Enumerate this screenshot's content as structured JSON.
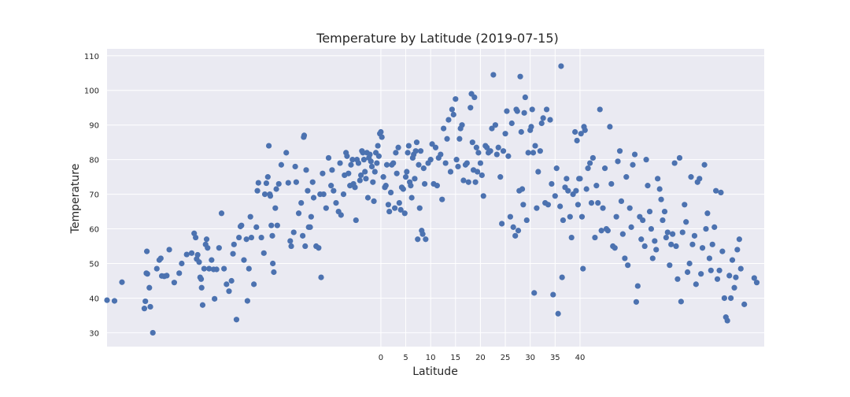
{
  "chart_data": {
    "type": "scatter",
    "title": "Temperature by Latitude (2019-07-15)",
    "xlabel": "Latitude",
    "ylabel": "Temperature",
    "xlim": [
      -55,
      77
    ],
    "ylim": [
      26,
      112
    ],
    "x_ticks": [
      0,
      5,
      10,
      15,
      20,
      25,
      30,
      35,
      40
    ],
    "y_ticks": [
      30,
      40,
      50,
      60,
      70,
      80,
      90,
      100,
      110
    ],
    "grid": true,
    "background": "#eaeaf2",
    "point_color": "#4c72b0",
    "points": [
      [
        -55,
        39.4
      ],
      [
        -53.5,
        39.2
      ],
      [
        -52,
        44.6
      ],
      [
        -47.5,
        37.0
      ],
      [
        -47.3,
        39.1
      ],
      [
        -47.1,
        47.2
      ],
      [
        -47.0,
        53.5
      ],
      [
        -46.9,
        47.0
      ],
      [
        -46.5,
        43.0
      ],
      [
        -46.3,
        37.5
      ],
      [
        -45.8,
        30.0
      ],
      [
        -45,
        48.5
      ],
      [
        -44.5,
        51.0
      ],
      [
        -44.2,
        51.5
      ],
      [
        -44,
        46.4
      ],
      [
        -43.5,
        46.3
      ],
      [
        -43,
        46.5
      ],
      [
        -42.5,
        54.0
      ],
      [
        -41.5,
        44.5
      ],
      [
        -40.5,
        47.2
      ],
      [
        -40,
        50.0
      ],
      [
        -39,
        52.6
      ],
      [
        -38,
        53.0
      ],
      [
        -37.5,
        58.7
      ],
      [
        -37.2,
        57.5
      ],
      [
        -37,
        51.3
      ],
      [
        -36.8,
        52.5
      ],
      [
        -36.5,
        50.4
      ],
      [
        -36.3,
        46.0
      ],
      [
        -36.1,
        45.5
      ],
      [
        -36,
        43.0
      ],
      [
        -35.8,
        38.0
      ],
      [
        -35.5,
        48.5
      ],
      [
        -35.2,
        55.5
      ],
      [
        -35,
        57.0
      ],
      [
        -34.8,
        54.5
      ],
      [
        -34.5,
        48.5
      ],
      [
        -34,
        51.0
      ],
      [
        -33.6,
        48.3
      ],
      [
        -33.4,
        39.8
      ],
      [
        -33,
        48.3
      ],
      [
        -32.5,
        54.5
      ],
      [
        -32,
        64.5
      ],
      [
        -31.5,
        48.5
      ],
      [
        -31,
        44.0
      ],
      [
        -30.5,
        42.0
      ],
      [
        -30,
        45.0
      ],
      [
        -29.7,
        52.8
      ],
      [
        -29.5,
        55.5
      ],
      [
        -29,
        33.8
      ],
      [
        -28.5,
        57.5
      ],
      [
        -28.2,
        60.7
      ],
      [
        -28,
        61.0
      ],
      [
        -27.5,
        51.0
      ],
      [
        -27,
        57.0
      ],
      [
        -26.8,
        39.2
      ],
      [
        -26.5,
        48.5
      ],
      [
        -26.2,
        63.5
      ],
      [
        -26,
        57.5
      ],
      [
        -25.5,
        44.0
      ],
      [
        -25,
        60.5
      ],
      [
        -24.8,
        71.0
      ],
      [
        -24.6,
        73.3
      ],
      [
        -24,
        57.5
      ],
      [
        -23.5,
        53.0
      ],
      [
        -23.3,
        70.0
      ],
      [
        -23,
        73.2
      ],
      [
        -22.7,
        75.0
      ],
      [
        -22.5,
        84.0
      ],
      [
        -22.3,
        70.0
      ],
      [
        -22.2,
        69.5
      ],
      [
        -22,
        61.0
      ],
      [
        -21.8,
        58.0
      ],
      [
        -21.7,
        50.0
      ],
      [
        -21.5,
        47.5
      ],
      [
        -21.2,
        66.0
      ],
      [
        -21,
        71.5
      ],
      [
        -20.8,
        61.0
      ],
      [
        -20.5,
        73.0
      ],
      [
        -20,
        78.5
      ],
      [
        -19,
        82.0
      ],
      [
        -18.6,
        73.3
      ],
      [
        -18.2,
        56.5
      ],
      [
        -18,
        55.0
      ],
      [
        -17.5,
        59.0
      ],
      [
        -17.2,
        78.0
      ],
      [
        -17,
        73.5
      ],
      [
        -16.5,
        64.5
      ],
      [
        -16,
        67.5
      ],
      [
        -15.7,
        58.0
      ],
      [
        -15.5,
        86.5
      ],
      [
        -15.4,
        87.0
      ],
      [
        -15.2,
        55.0
      ],
      [
        -15,
        77.0
      ],
      [
        -14.7,
        71.0
      ],
      [
        -14.5,
        60.5
      ],
      [
        -14.2,
        60.5
      ],
      [
        -14,
        63.5
      ],
      [
        -13.7,
        73.5
      ],
      [
        -13.5,
        69.0
      ],
      [
        -13,
        55.0
      ],
      [
        -12.5,
        54.5
      ],
      [
        -12.2,
        70.0
      ],
      [
        -12,
        46.0
      ],
      [
        -11.7,
        76.0
      ],
      [
        -11.5,
        70.0
      ],
      [
        -11,
        66.0
      ],
      [
        -10.5,
        80.5
      ],
      [
        -10,
        72.5
      ],
      [
        -9.8,
        77.0
      ],
      [
        -9.5,
        71.0
      ],
      [
        -9,
        67.5
      ],
      [
        -8.5,
        65.0
      ],
      [
        -8.2,
        79.0
      ],
      [
        -8,
        64.0
      ],
      [
        -7.5,
        70.0
      ],
      [
        -7.3,
        75.5
      ],
      [
        -7,
        82.0
      ],
      [
        -6.8,
        81.0
      ],
      [
        -6.5,
        76.0
      ],
      [
        -6.2,
        72.5
      ],
      [
        -6,
        78.5
      ],
      [
        -5.7,
        80.0
      ],
      [
        -5.5,
        73.0
      ],
      [
        -5.2,
        72.0
      ],
      [
        -5,
        62.5
      ],
      [
        -4.8,
        80.0
      ],
      [
        -4.5,
        79.0
      ],
      [
        -4.2,
        74.0
      ],
      [
        -4,
        75.5
      ],
      [
        -3.8,
        82.5
      ],
      [
        -3.6,
        82.0
      ],
      [
        -3.4,
        80.0
      ],
      [
        -3.2,
        76.5
      ],
      [
        -3,
        74.5
      ],
      [
        -2.8,
        82.0
      ],
      [
        -2.6,
        69.0
      ],
      [
        -2.4,
        80.5
      ],
      [
        -2.2,
        81.5
      ],
      [
        -2,
        79.5
      ],
      [
        -1.8,
        78.0
      ],
      [
        -1.6,
        73.5
      ],
      [
        -1.4,
        68.0
      ],
      [
        -1.2,
        76.5
      ],
      [
        -1,
        82.0
      ],
      [
        -0.8,
        79.0
      ],
      [
        -0.6,
        84.0
      ],
      [
        -0.4,
        81.0
      ],
      [
        -0.2,
        87.5
      ],
      [
        0,
        88.0
      ],
      [
        0.2,
        86.5
      ],
      [
        0.5,
        75.0
      ],
      [
        0.8,
        72.0
      ],
      [
        1,
        72.5
      ],
      [
        1.2,
        78.5
      ],
      [
        1.5,
        67.0
      ],
      [
        1.7,
        65.0
      ],
      [
        2,
        70.5
      ],
      [
        2.2,
        78.5
      ],
      [
        2.5,
        79.0
      ],
      [
        2.8,
        66.0
      ],
      [
        3,
        82.0
      ],
      [
        3.2,
        76.0
      ],
      [
        3.5,
        83.5
      ],
      [
        3.7,
        67.5
      ],
      [
        4,
        65.5
      ],
      [
        4.2,
        72.0
      ],
      [
        4.5,
        71.5
      ],
      [
        4.8,
        64.5
      ],
      [
        5,
        75.0
      ],
      [
        5.2,
        76.5
      ],
      [
        5.4,
        82.0
      ],
      [
        5.6,
        84.0
      ],
      [
        5.8,
        73.5
      ],
      [
        6,
        72.5
      ],
      [
        6.2,
        69.0
      ],
      [
        6.4,
        80.5
      ],
      [
        6.6,
        81.5
      ],
      [
        6.8,
        74.5
      ],
      [
        7,
        82.5
      ],
      [
        7.2,
        85.0
      ],
      [
        7.4,
        57.0
      ],
      [
        7.6,
        78.5
      ],
      [
        7.8,
        66.0
      ],
      [
        8,
        82.5
      ],
      [
        8.2,
        59.5
      ],
      [
        8.4,
        58.5
      ],
      [
        8.6,
        77.5
      ],
      [
        8.8,
        73.0
      ],
      [
        9,
        57.0
      ],
      [
        9.5,
        79.0
      ],
      [
        10,
        80.0
      ],
      [
        10.3,
        84.5
      ],
      [
        10.6,
        73.0
      ],
      [
        11,
        83.5
      ],
      [
        11.3,
        72.5
      ],
      [
        11.6,
        80.5
      ],
      [
        12,
        81.5
      ],
      [
        12.3,
        68.5
      ],
      [
        12.6,
        89.0
      ],
      [
        13,
        79.0
      ],
      [
        13.3,
        86.0
      ],
      [
        13.6,
        91.5
      ],
      [
        14,
        76.5
      ],
      [
        14.3,
        94.5
      ],
      [
        14.6,
        93.0
      ],
      [
        15,
        97.5
      ],
      [
        15.2,
        80.0
      ],
      [
        15.5,
        78.0
      ],
      [
        15.8,
        86.0
      ],
      [
        16,
        89.0
      ],
      [
        16.3,
        90.0
      ],
      [
        16.6,
        74.0
      ],
      [
        17,
        78.5
      ],
      [
        17.3,
        79.0
      ],
      [
        17.6,
        73.5
      ],
      [
        18,
        95.0
      ],
      [
        18.2,
        99.0
      ],
      [
        18.4,
        85.0
      ],
      [
        18.6,
        77.0
      ],
      [
        18.8,
        98.0
      ],
      [
        19,
        73.5
      ],
      [
        19.2,
        83.5
      ],
      [
        19.4,
        76.5
      ],
      [
        19.6,
        82.0
      ],
      [
        20,
        79.0
      ],
      [
        20.3,
        75.5
      ],
      [
        20.6,
        69.5
      ],
      [
        21,
        84.0
      ],
      [
        21.3,
        83.5
      ],
      [
        21.6,
        82.0
      ],
      [
        22,
        82.5
      ],
      [
        22.3,
        89.0
      ],
      [
        22.6,
        104.5
      ],
      [
        23,
        90.0
      ],
      [
        23.3,
        81.5
      ],
      [
        23.6,
        83.5
      ],
      [
        24,
        75.0
      ],
      [
        24.3,
        61.5
      ],
      [
        24.6,
        82.5
      ],
      [
        25,
        87.5
      ],
      [
        25.3,
        94.0
      ],
      [
        25.6,
        81.0
      ],
      [
        26,
        63.5
      ],
      [
        26.3,
        90.5
      ],
      [
        26.6,
        60.5
      ],
      [
        27,
        58.0
      ],
      [
        27.2,
        94.5
      ],
      [
        27.4,
        94.0
      ],
      [
        27.6,
        59.5
      ],
      [
        27.8,
        71.0
      ],
      [
        28,
        104.0
      ],
      [
        28.2,
        88.0
      ],
      [
        28.4,
        71.5
      ],
      [
        28.6,
        67.0
      ],
      [
        28.8,
        93.5
      ],
      [
        29,
        98.0
      ],
      [
        29.3,
        62.5
      ],
      [
        29.6,
        82.0
      ],
      [
        30,
        88.5
      ],
      [
        30.2,
        89.5
      ],
      [
        30.4,
        94.5
      ],
      [
        30.6,
        82.0
      ],
      [
        30.8,
        41.5
      ],
      [
        31,
        84.0
      ],
      [
        31.3,
        66.0
      ],
      [
        31.6,
        76.5
      ],
      [
        32,
        82.5
      ],
      [
        32.3,
        90.5
      ],
      [
        32.6,
        92.0
      ],
      [
        33,
        67.5
      ],
      [
        33.3,
        94.5
      ],
      [
        33.6,
        67.0
      ],
      [
        34,
        91.5
      ],
      [
        34.3,
        73.0
      ],
      [
        34.6,
        41.0
      ],
      [
        35,
        69.5
      ],
      [
        35.3,
        77.5
      ],
      [
        35.6,
        35.5
      ],
      [
        36,
        66.5
      ],
      [
        36.2,
        107.0
      ],
      [
        36.4,
        46.0
      ],
      [
        36.6,
        62.5
      ],
      [
        37,
        72.0
      ],
      [
        37.3,
        74.5
      ],
      [
        37.6,
        71.0
      ],
      [
        38,
        63.5
      ],
      [
        38.3,
        57.5
      ],
      [
        38.6,
        70.0
      ],
      [
        39,
        88.0
      ],
      [
        39.2,
        71.0
      ],
      [
        39.4,
        85.5
      ],
      [
        39.6,
        67.0
      ],
      [
        39.8,
        74.5
      ],
      [
        40,
        74.5
      ],
      [
        40.2,
        87.5
      ],
      [
        40.4,
        63.5
      ],
      [
        40.6,
        48.5
      ],
      [
        40.8,
        89.5
      ],
      [
        41,
        88.5
      ],
      [
        41.3,
        71.5
      ],
      [
        41.6,
        77.5
      ],
      [
        42,
        79.0
      ],
      [
        42.3,
        67.5
      ],
      [
        42.6,
        80.5
      ],
      [
        43,
        57.5
      ],
      [
        43.3,
        72.5
      ],
      [
        43.6,
        67.5
      ],
      [
        44,
        94.5
      ],
      [
        44.3,
        59.5
      ],
      [
        44.6,
        66.0
      ],
      [
        45,
        77.5
      ],
      [
        45.3,
        60.0
      ],
      [
        45.6,
        59.5
      ],
      [
        46,
        89.5
      ],
      [
        46.3,
        73.0
      ],
      [
        46.6,
        55.0
      ],
      [
        47,
        54.5
      ],
      [
        47.3,
        63.5
      ],
      [
        47.6,
        79.5
      ],
      [
        48,
        82.5
      ],
      [
        48.3,
        68.0
      ],
      [
        48.6,
        58.5
      ],
      [
        49,
        51.5
      ],
      [
        49.3,
        75.0
      ],
      [
        49.6,
        49.5
      ],
      [
        50,
        66.0
      ],
      [
        50.3,
        60.5
      ],
      [
        50.6,
        78.5
      ],
      [
        51,
        81.5
      ],
      [
        51.3,
        38.9
      ],
      [
        51.6,
        43.5
      ],
      [
        52,
        63.5
      ],
      [
        52.3,
        57.0
      ],
      [
        52.6,
        62.5
      ],
      [
        53,
        55.0
      ],
      [
        53.3,
        80.0
      ],
      [
        53.6,
        72.5
      ],
      [
        54,
        65.0
      ],
      [
        54.3,
        60.0
      ],
      [
        54.6,
        51.5
      ],
      [
        55,
        56.5
      ],
      [
        55.3,
        54.0
      ],
      [
        55.6,
        74.5
      ],
      [
        56,
        71.5
      ],
      [
        56.3,
        68.5
      ],
      [
        56.6,
        62.5
      ],
      [
        57,
        65.0
      ],
      [
        57.3,
        57.5
      ],
      [
        57.6,
        59.0
      ],
      [
        58,
        49.5
      ],
      [
        58.3,
        55.5
      ],
      [
        58.6,
        58.5
      ],
      [
        59,
        79.0
      ],
      [
        59.3,
        55.0
      ],
      [
        59.6,
        45.5
      ],
      [
        60,
        80.5
      ],
      [
        60.3,
        39.0
      ],
      [
        60.6,
        59.0
      ],
      [
        61,
        67.0
      ],
      [
        61.3,
        62.0
      ],
      [
        61.6,
        47.5
      ],
      [
        62,
        50.0
      ],
      [
        62.3,
        75.0
      ],
      [
        62.6,
        55.5
      ],
      [
        63,
        58.0
      ],
      [
        63.3,
        44.0
      ],
      [
        63.6,
        73.5
      ],
      [
        64,
        74.5
      ],
      [
        64.3,
        47.0
      ],
      [
        64.6,
        54.5
      ],
      [
        65,
        78.5
      ],
      [
        65.3,
        60.0
      ],
      [
        65.6,
        64.5
      ],
      [
        66,
        51.5
      ],
      [
        66.3,
        48.0
      ],
      [
        66.6,
        55.5
      ],
      [
        67,
        60.5
      ],
      [
        67.3,
        71.0
      ],
      [
        67.6,
        45.5
      ],
      [
        68,
        48.0
      ],
      [
        68.3,
        70.5
      ],
      [
        68.6,
        53.5
      ],
      [
        69,
        40.0
      ],
      [
        69.3,
        34.5
      ],
      [
        69.6,
        33.5
      ],
      [
        70,
        46.5
      ],
      [
        70.3,
        40.0
      ],
      [
        70.6,
        51.0
      ],
      [
        71,
        43.0
      ],
      [
        71.3,
        46.0
      ],
      [
        71.6,
        54.0
      ],
      [
        72,
        57.0
      ],
      [
        72.3,
        48.5
      ],
      [
        73,
        38.2
      ],
      [
        75,
        45.8
      ],
      [
        75.5,
        44.5
      ]
    ]
  }
}
